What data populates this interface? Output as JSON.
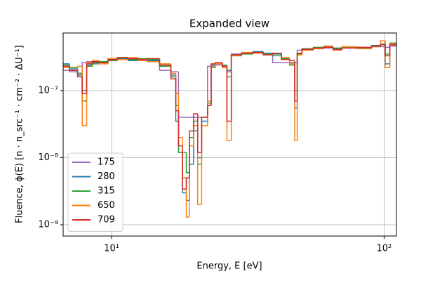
{
  "chart_data": {
    "type": "step",
    "title": "Expanded view",
    "xlabel": "Energy, E [eV]",
    "ylabel": "Fluence, ϕ(E) [n · n_src⁻¹ · cm⁻² · ΔU⁻¹]",
    "xscale": "log",
    "yscale": "log",
    "grid": true,
    "legend": "lower left",
    "xlim": [
      6.64,
      111
    ],
    "ylim": [
      6.8e-10,
      7.2e-07
    ],
    "xticks": [
      {
        "value": 10,
        "label": "10¹"
      },
      {
        "value": 100,
        "label": "10²"
      }
    ],
    "yticks": [
      {
        "value": 1e-09,
        "label": "10⁻⁹"
      },
      {
        "value": 1e-08,
        "label": "10⁻⁸"
      },
      {
        "value": 1e-07,
        "label": "10⁻⁷"
      }
    ],
    "x": [
      6.6,
      7.0,
      7.5,
      7.8,
      8.1,
      8.5,
      9.0,
      9.7,
      10.5,
      11.5,
      12.5,
      13.5,
      15.0,
      16.5,
      17.2,
      17.6,
      18.2,
      18.8,
      19.3,
      20.0,
      20.7,
      21.4,
      22.5,
      23.2,
      24.0,
      25.5,
      26.5,
      27.5,
      30,
      33,
      36,
      39,
      42,
      45,
      47,
      48,
      50,
      55,
      60,
      65,
      70,
      80,
      90,
      97,
      101,
      105,
      111
    ],
    "series": [
      {
        "name": "175",
        "color": "#9467bd",
        "values": [
          2e-07,
          1.9e-07,
          1.8e-07,
          2.6e-07,
          2.7e-07,
          2.7e-07,
          2.7e-07,
          2.8e-07,
          2.9e-07,
          2.9e-07,
          2.8e-07,
          2.8e-07,
          2e-07,
          1.9e-07,
          1.9e-07,
          4e-08,
          4e-08,
          4e-08,
          4e-08,
          4e-08,
          4e-08,
          4e-08,
          2.3e-07,
          2.4e-07,
          2.4e-07,
          2.2e-07,
          1.9e-07,
          3.5e-07,
          3.6e-07,
          3.7e-07,
          3.5e-07,
          2.6e-07,
          2.6e-07,
          2.6e-07,
          2.6e-07,
          4e-07,
          4.2e-07,
          4.3e-07,
          4.3e-07,
          4.2e-07,
          4.3e-07,
          4.3e-07,
          4.5e-07,
          4.5e-07,
          4.4e-07,
          4.6e-07,
          4.6e-07
        ]
      },
      {
        "name": "280",
        "color": "#1f77b4",
        "values": [
          2.5e-07,
          2.1e-07,
          1.7e-07,
          1e-07,
          2.4e-07,
          2.6e-07,
          2.6e-07,
          2.9e-07,
          3e-07,
          2.8e-07,
          2.9e-07,
          2.8e-07,
          2.4e-07,
          1.7e-07,
          3.5e-08,
          1.2e-08,
          3e-09,
          2.3e-09,
          8e-09,
          2.5e-08,
          1e-08,
          3.5e-08,
          6e-08,
          2.4e-07,
          2.6e-07,
          2.3e-07,
          2e-07,
          3.4e-07,
          3.6e-07,
          3.8e-07,
          3.6e-07,
          3.5e-07,
          2.9e-07,
          2.6e-07,
          5.5e-08,
          3.6e-07,
          4.1e-07,
          4.3e-07,
          4.6e-07,
          4.2e-07,
          4.4e-07,
          4.3e-07,
          4.7e-07,
          4.9e-07,
          2.5e-07,
          4.9e-07,
          5e-07
        ]
      },
      {
        "name": "315",
        "color": "#2ca02c",
        "values": [
          2.4e-07,
          2.2e-07,
          1.8e-07,
          7e-08,
          2.3e-07,
          2.5e-07,
          2.7e-07,
          2.8e-07,
          3.1e-07,
          2.9e-07,
          3e-07,
          2.9e-07,
          2.3e-07,
          1.6e-07,
          6e-08,
          1.2e-08,
          1.2e-08,
          6e-09,
          2e-08,
          3.5e-08,
          8e-09,
          4e-08,
          6.5e-08,
          2.2e-07,
          2.5e-07,
          2.4e-07,
          1.6e-07,
          3.3e-07,
          3.5e-07,
          3.7e-07,
          3.5e-07,
          3.3e-07,
          3e-07,
          2.4e-07,
          1e-07,
          3.5e-07,
          4.2e-07,
          4.4e-07,
          4.5e-07,
          4.3e-07,
          4.4e-07,
          4.4e-07,
          4.6e-07,
          4.8e-07,
          3.5e-07,
          5.1e-07,
          5.2e-07
        ]
      },
      {
        "name": "650",
        "color": "#ff7f0e",
        "values": [
          2.2e-07,
          2e-07,
          2.3e-07,
          3e-08,
          2.6e-07,
          2.8e-07,
          2.5e-07,
          3e-07,
          2.9e-07,
          3.1e-07,
          2.8e-07,
          2.7e-07,
          2.5e-07,
          1.8e-07,
          9e-08,
          2e-08,
          5e-09,
          1.3e-09,
          1.5e-08,
          3e-08,
          2e-09,
          3e-08,
          7e-08,
          2.3e-07,
          2.5e-07,
          2.2e-07,
          1.8e-08,
          3.3e-07,
          3.7e-07,
          3.6e-07,
          3.4e-07,
          3.6e-07,
          3.1e-07,
          2.5e-07,
          1.8e-08,
          3.4e-07,
          4e-07,
          4.2e-07,
          4.6e-07,
          4e-07,
          4.5e-07,
          4.2e-07,
          4.5e-07,
          5.5e-07,
          2.2e-07,
          5e-07,
          5.2e-07
        ]
      },
      {
        "name": "709",
        "color": "#d62728",
        "values": [
          2.3e-07,
          2e-07,
          1.6e-07,
          9e-08,
          2.5e-07,
          2.7e-07,
          2.6e-07,
          2.9e-07,
          3.1e-07,
          3e-07,
          2.9e-07,
          3e-07,
          2.4e-07,
          1.5e-07,
          5e-08,
          1.5e-08,
          3.4e-09,
          5e-09,
          2.5e-08,
          4.5e-08,
          1.2e-08,
          4e-08,
          6e-08,
          2.5e-07,
          2.6e-07,
          2.3e-07,
          3.5e-08,
          3.4e-07,
          3.6e-07,
          3.7e-07,
          3.4e-07,
          3.6e-07,
          2.9e-07,
          2.8e-07,
          7e-08,
          3.6e-07,
          4.1e-07,
          4.3e-07,
          4.4e-07,
          4.1e-07,
          4.3e-07,
          4.4e-07,
          4.6e-07,
          4.9e-07,
          3.3e-07,
          4.8e-07,
          5.2e-07
        ]
      }
    ]
  }
}
